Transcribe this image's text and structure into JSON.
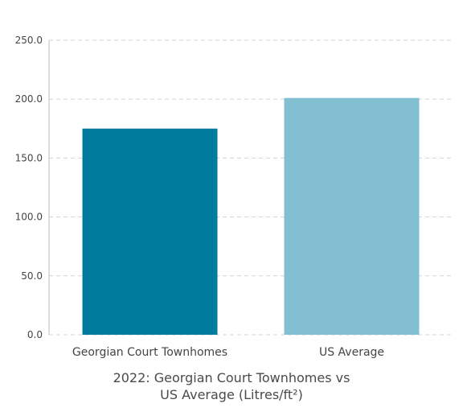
{
  "chart_data": {
    "type": "bar",
    "categories": [
      "Georgian Court Townhomes",
      "US Average"
    ],
    "values": [
      175.0,
      201.0
    ],
    "colors": [
      "#007b9e",
      "#82bfd2"
    ],
    "ylim": [
      0,
      250
    ],
    "yticks": [
      "0.0",
      "50.0",
      "100.0",
      "150.0",
      "200.0",
      "250.0"
    ],
    "title_lines": [
      "2022: Georgian Court Townhomes vs",
      "US Average (Litres/ft²)"
    ],
    "xlabel": "",
    "ylabel": "",
    "grid": true,
    "legend": "none"
  }
}
